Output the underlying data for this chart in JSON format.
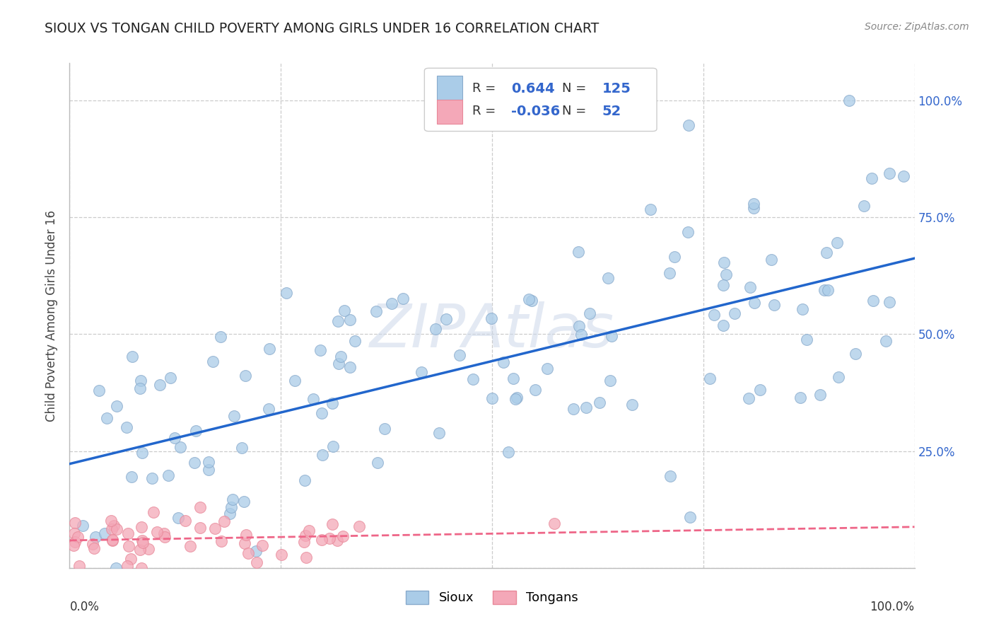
{
  "title": "SIOUX VS TONGAN CHILD POVERTY AMONG GIRLS UNDER 16 CORRELATION CHART",
  "source": "Source: ZipAtlas.com",
  "ylabel": "Child Poverty Among Girls Under 16",
  "sioux_R": 0.644,
  "sioux_N": 125,
  "tongan_R": -0.036,
  "tongan_N": 52,
  "sioux_color": "#aacce8",
  "tongan_color": "#f4a8b8",
  "sioux_edge_color": "#88aacc",
  "tongan_edge_color": "#e88899",
  "sioux_line_color": "#2266cc",
  "tongan_line_color": "#ee6688",
  "background_color": "#ffffff",
  "grid_color": "#cccccc",
  "right_label_color": "#3366cc",
  "title_color": "#222222",
  "ylabel_color": "#444444",
  "watermark_color": "#ccd8ea",
  "watermark_text": "ZIPAtlas",
  "sioux_seed": 42,
  "tongan_seed": 7
}
